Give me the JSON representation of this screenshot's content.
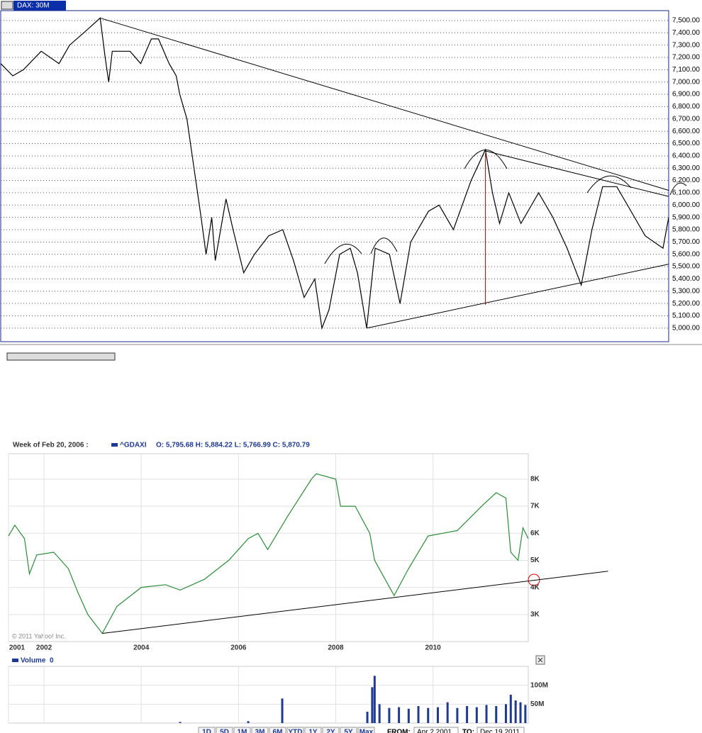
{
  "chart_data": [
    {
      "type": "line",
      "title": "DAX: 30M",
      "color": "#000000",
      "grid": true,
      "xlim": [
        0,
        940
      ],
      "ylim": [
        4890,
        7580
      ],
      "yticks": [
        {
          "value": 5000,
          "label": "5,000.00"
        },
        {
          "value": 5100,
          "label": "5,100.00"
        },
        {
          "value": 5200,
          "label": "5,200.00"
        },
        {
          "value": 5300,
          "label": "5,300.00"
        },
        {
          "value": 5400,
          "label": "5,400.00"
        },
        {
          "value": 5500,
          "label": "5,500.00"
        },
        {
          "value": 5600,
          "label": "5,600.00"
        },
        {
          "value": 5700,
          "label": "5,700.00"
        },
        {
          "value": 5800,
          "label": "5,800.00"
        },
        {
          "value": 5900,
          "label": "5,900.00"
        },
        {
          "value": 6000,
          "label": "6,000.00"
        },
        {
          "value": 6100,
          "label": "6,100.00"
        },
        {
          "value": 6200,
          "label": "6,200.00"
        },
        {
          "value": 6300,
          "label": "6,300.00"
        },
        {
          "value": 6400,
          "label": "6,400.00"
        },
        {
          "value": 6500,
          "label": "6,500.00"
        },
        {
          "value": 6600,
          "label": "6,600.00"
        },
        {
          "value": 6700,
          "label": "6,700.00"
        },
        {
          "value": 6800,
          "label": "6,800.00"
        },
        {
          "value": 6900,
          "label": "6,900.00"
        },
        {
          "value": 7000,
          "label": "7,000.00"
        },
        {
          "value": 7100,
          "label": "7,100.00"
        },
        {
          "value": 7200,
          "label": "7,200.00"
        },
        {
          "value": 7300,
          "label": "7,300.00"
        },
        {
          "value": 7400,
          "label": "7,400.00"
        },
        {
          "value": 7500,
          "label": "7,500.00"
        }
      ],
      "x": [
        0,
        17,
        32,
        57,
        82,
        97,
        117,
        140,
        147,
        152,
        157,
        182,
        197,
        212,
        222,
        237,
        247,
        252,
        262,
        272,
        282,
        289,
        297,
        302,
        317,
        327,
        342,
        357,
        377,
        397,
        412,
        427,
        442,
        452,
        462,
        477,
        492,
        502,
        515,
        527,
        547,
        562,
        577,
        602,
        617,
        637,
        662,
        682,
        692,
        702,
        715,
        732,
        757,
        777,
        797,
        817,
        832,
        847,
        867,
        887,
        907,
        932,
        940
      ],
      "values": [
        7150,
        7050,
        7100,
        7250,
        7150,
        7300,
        7400,
        7520,
        7200,
        7000,
        7250,
        7250,
        7150,
        7350,
        7350,
        7150,
        7050,
        6900,
        6700,
        6300,
        5900,
        5600,
        5900,
        5550,
        6050,
        5800,
        5450,
        5600,
        5750,
        5800,
        5550,
        5250,
        5400,
        5000,
        5150,
        5600,
        5650,
        5450,
        5000,
        5650,
        5600,
        5200,
        5700,
        5950,
        6000,
        5800,
        6200,
        6450,
        6100,
        5850,
        6100,
        5850,
        6100,
        5900,
        5650,
        5350,
        5800,
        6150,
        6150,
        5950,
        5750,
        5650,
        5900
      ],
      "trend_lines": [
        {
          "color": "#000000",
          "x": [
            140,
            940
          ],
          "values": [
            7520,
            6120
          ]
        },
        {
          "color": "#000000",
          "x": [
            682,
            940
          ],
          "values": [
            6440,
            6070
          ]
        },
        {
          "color": "#000000",
          "x": [
            515,
            940
          ],
          "values": [
            5000,
            5520
          ]
        },
        {
          "color": "#cc0000",
          "x": [
            682,
            682
          ],
          "values": [
            6420,
            5190
          ]
        }
      ]
    },
    {
      "type": "line",
      "header": "Week of Feb 20, 2006 :",
      "name": "^GDAXI",
      "ohlc": "O: 5,795.68 H: 5,884.22 L: 5,766.99 C: 5,870.79",
      "credit": "© 2011 Yahoo! Inc.",
      "color": "#2e8b3a",
      "grid": true,
      "xlim": [
        2001.27,
        2011.96
      ],
      "ylim": [
        2000,
        8940
      ],
      "xticks": [
        {
          "value": 2001.27,
          "label": "2001"
        },
        2002,
        2004,
        2006,
        2008,
        2010
      ],
      "yticks": [
        {
          "value": 3000,
          "label": "3K"
        },
        {
          "value": 4000,
          "label": "4K"
        },
        {
          "value": 5000,
          "label": "5K"
        },
        {
          "value": 6000,
          "label": "6K"
        },
        {
          "value": 7000,
          "label": "7K"
        },
        {
          "value": 8000,
          "label": "8K"
        }
      ],
      "x": [
        2001.27,
        2001.4,
        2001.6,
        2001.7,
        2001.85,
        2002.2,
        2002.5,
        2002.7,
        2002.9,
        2003.2,
        2003.5,
        2004.0,
        2004.5,
        2004.8,
        2005.3,
        2005.8,
        2006.2,
        2006.4,
        2006.6,
        2007.0,
        2007.5,
        2007.6,
        2008.0,
        2008.1,
        2008.4,
        2008.7,
        2008.8,
        2009.2,
        2009.5,
        2009.9,
        2010.5,
        2011.0,
        2011.3,
        2011.5,
        2011.6,
        2011.75,
        2011.85,
        2011.96
      ],
      "values": [
        5900,
        6300,
        5800,
        4500,
        5200,
        5300,
        4700,
        3800,
        3000,
        2300,
        3300,
        4000,
        4100,
        3900,
        4300,
        5000,
        5800,
        6000,
        5400,
        6600,
        8000,
        8200,
        8000,
        7000,
        7000,
        6000,
        5000,
        3700,
        4700,
        5900,
        6100,
        7000,
        7500,
        7300,
        5300,
        5000,
        6200,
        5800
      ],
      "trend_lines": [
        {
          "color": "#000000",
          "x": [
            2003.2,
            2013.6
          ],
          "values": [
            2300,
            4600
          ]
        }
      ]
    },
    {
      "type": "bar",
      "label": "Volume",
      "value_text": "0",
      "color": "#1f3a93",
      "grid": true,
      "xlim": [
        2001.27,
        2011.96
      ],
      "ylim": [
        0,
        150000000
      ],
      "yticks": [
        {
          "value": 50000000,
          "label": "50M"
        },
        {
          "value": 100000000,
          "label": "100M"
        }
      ],
      "x": [
        2004.8,
        2006.2,
        2006.9,
        2008.65,
        2008.75,
        2008.8,
        2008.9,
        2009.1,
        2009.3,
        2009.5,
        2009.7,
        2009.9,
        2010.1,
        2010.3,
        2010.5,
        2010.7,
        2010.9,
        2011.1,
        2011.3,
        2011.5,
        2011.6,
        2011.7,
        2011.8,
        2011.9
      ],
      "values": [
        3000000,
        5000000,
        65000000,
        30000000,
        95000000,
        125000000,
        50000000,
        40000000,
        42000000,
        38000000,
        45000000,
        40000000,
        42000000,
        55000000,
        40000000,
        45000000,
        42000000,
        48000000,
        45000000,
        50000000,
        75000000,
        60000000,
        55000000,
        48000000
      ]
    }
  ],
  "controls": {
    "buttons": [
      "1D",
      "5D",
      "1M",
      "3M",
      "6M",
      "YTD",
      "1Y",
      "2Y",
      "5Y",
      "Max"
    ],
    "from_label": "FROM:",
    "from": "Apr 2 2001",
    "to_label": "TO:",
    "to": "Dec 19 2011"
  }
}
